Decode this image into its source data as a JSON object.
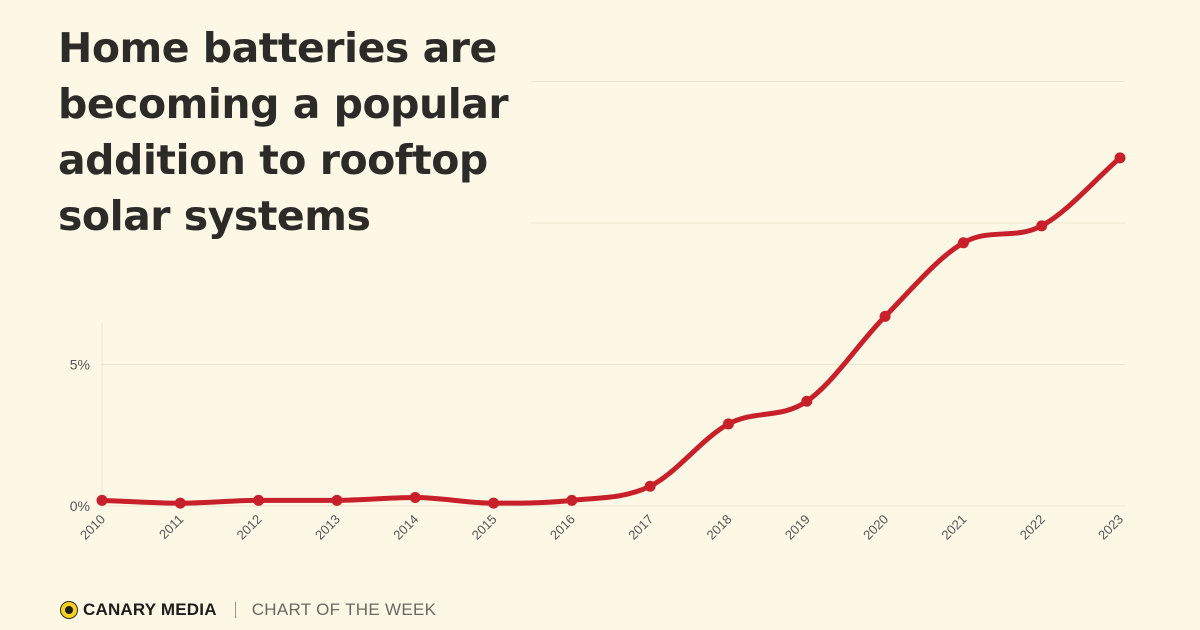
{
  "title": "Home batteries are becoming a popular addition to rooftop solar systems",
  "footer": {
    "brand": "CANARY MEDIA",
    "section": "CHART OF THE WEEK"
  },
  "colors": {
    "background": "#fdf8e6",
    "line": "#c8202a",
    "logo": "#f5d21f"
  },
  "chart_data": {
    "type": "line",
    "title": "Home batteries are becoming a popular addition to rooftop solar systems",
    "xlabel": "",
    "ylabel": "",
    "categories": [
      "2010",
      "2011",
      "2012",
      "2013",
      "2014",
      "2015",
      "2016",
      "2017",
      "2018",
      "2019",
      "2020",
      "2021",
      "2022",
      "2023"
    ],
    "series": [
      {
        "values": [
          0.2,
          0.1,
          0.2,
          0.2,
          0.3,
          0.1,
          0.2,
          0.7,
          2.9,
          3.7,
          6.7,
          9.3,
          9.9,
          12.3
        ]
      }
    ],
    "ylim": [
      0,
      15
    ],
    "yticks": [
      {
        "value": 0,
        "label": "0%"
      },
      {
        "value": 5,
        "label": "5%"
      }
    ],
    "grid": true,
    "smooth": true
  }
}
